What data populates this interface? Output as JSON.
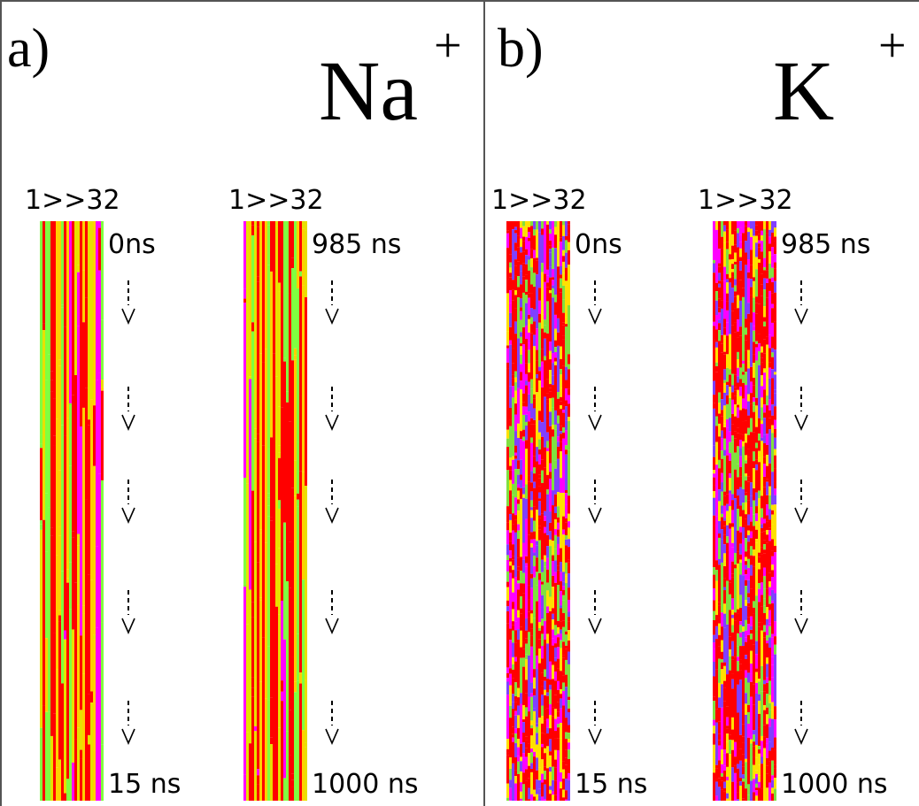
{
  "panels": [
    {
      "label": "a)",
      "ion": "Na",
      "charge": "+",
      "strips": [
        {
          "header": "1>>32",
          "start": "0ns",
          "end": "15 ns"
        },
        {
          "header": "1>>32",
          "start": "985 ns",
          "end": "1000 ns"
        }
      ]
    },
    {
      "label": "b)",
      "ion": "K",
      "charge": "+",
      "strips": [
        {
          "header": "1>>32",
          "start": "0ns",
          "end": "15 ns"
        },
        {
          "header": "1>>32",
          "start": "985 ns",
          "end": "1000 ns"
        }
      ]
    }
  ]
}
